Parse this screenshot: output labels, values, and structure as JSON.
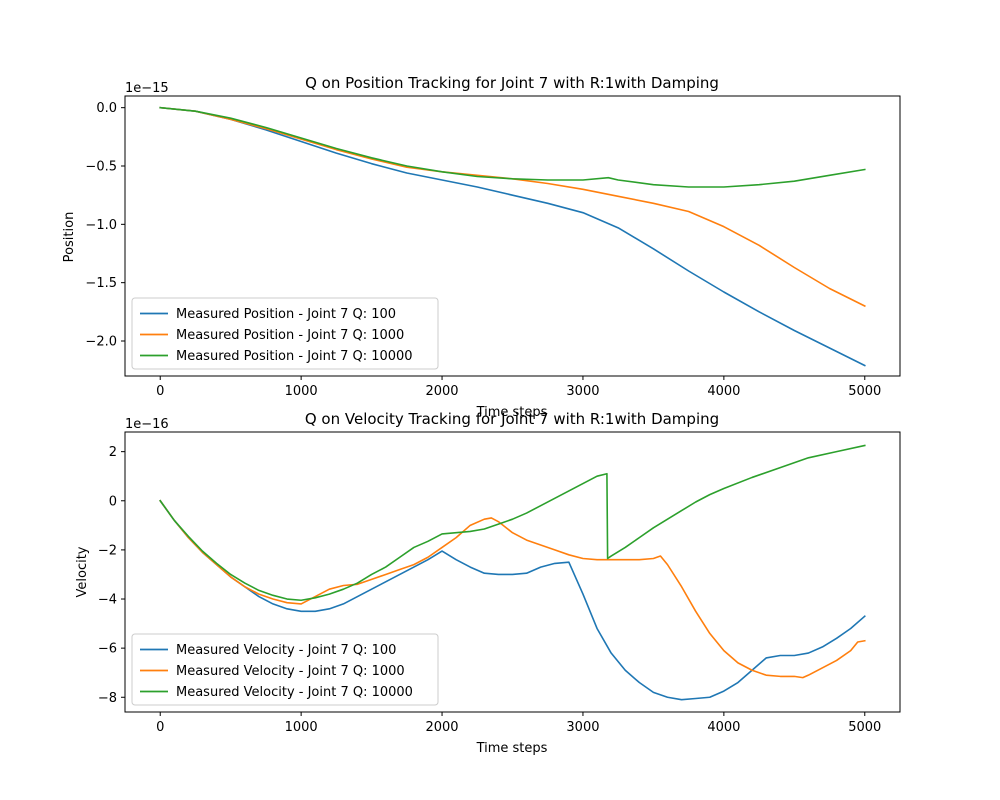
{
  "chart_data": [
    {
      "type": "line",
      "title": "Q on Position Tracking for Joint 7 with R:1with Damping",
      "xlabel": "Time steps",
      "ylabel": "Position",
      "offset_text": "1e−15",
      "xlim": [
        -250,
        5250
      ],
      "ylim": [
        -2.3,
        0.1
      ],
      "xticks": [
        0,
        1000,
        2000,
        3000,
        4000,
        5000
      ],
      "yticks": [
        0.0,
        -0.5,
        -1.0,
        -1.5,
        -2.0
      ],
      "ytick_labels": [
        "0.0",
        "−0.5",
        "−1.0",
        "−1.5",
        "−2.0"
      ],
      "grid": false,
      "legend": "lower-left",
      "series": [
        {
          "name": "Measured Position - Joint 7 Q: 100",
          "color": "#1f77b4",
          "x": [
            0,
            250,
            500,
            750,
            1000,
            1250,
            1500,
            1750,
            2000,
            2250,
            2500,
            2750,
            3000,
            3250,
            3500,
            3750,
            4000,
            4250,
            4500,
            4750,
            5000
          ],
          "y": [
            0.0,
            -0.03,
            -0.1,
            -0.19,
            -0.29,
            -0.39,
            -0.48,
            -0.56,
            -0.62,
            -0.68,
            -0.75,
            -0.82,
            -0.9,
            -1.03,
            -1.21,
            -1.4,
            -1.58,
            -1.75,
            -1.91,
            -2.06,
            -2.21
          ]
        },
        {
          "name": "Measured Position - Joint 7 Q: 1000",
          "color": "#ff7f0e",
          "x": [
            0,
            250,
            500,
            750,
            1000,
            1250,
            1500,
            1750,
            2000,
            2250,
            2500,
            2750,
            3000,
            3250,
            3500,
            3750,
            4000,
            4250,
            4500,
            4750,
            5000
          ],
          "y": [
            0.0,
            -0.03,
            -0.1,
            -0.18,
            -0.27,
            -0.36,
            -0.44,
            -0.51,
            -0.55,
            -0.58,
            -0.61,
            -0.65,
            -0.7,
            -0.76,
            -0.82,
            -0.89,
            -1.02,
            -1.18,
            -1.37,
            -1.55,
            -1.7
          ]
        },
        {
          "name": "Measured Position - Joint 7 Q: 10000",
          "color": "#2ca02c",
          "x": [
            0,
            250,
            500,
            750,
            1000,
            1250,
            1500,
            1750,
            2000,
            2250,
            2500,
            2750,
            3000,
            3180,
            3250,
            3500,
            3750,
            4000,
            4250,
            4500,
            4750,
            5000
          ],
          "y": [
            0.0,
            -0.03,
            -0.09,
            -0.17,
            -0.26,
            -0.35,
            -0.43,
            -0.5,
            -0.55,
            -0.59,
            -0.61,
            -0.62,
            -0.62,
            -0.6,
            -0.62,
            -0.66,
            -0.68,
            -0.68,
            -0.66,
            -0.63,
            -0.58,
            -0.53
          ]
        }
      ]
    },
    {
      "type": "line",
      "title": "Q on Velocity Tracking for Joint 7 with R:1with Damping",
      "xlabel": "Time steps",
      "ylabel": "Velocity",
      "offset_text": "1e−16",
      "xlim": [
        -250,
        5250
      ],
      "ylim": [
        -8.6,
        2.8
      ],
      "xticks": [
        0,
        1000,
        2000,
        3000,
        4000,
        5000
      ],
      "yticks": [
        2,
        0,
        -2,
        -4,
        -6,
        -8
      ],
      "ytick_labels": [
        "2",
        "0",
        "−2",
        "−4",
        "−6",
        "−8"
      ],
      "grid": false,
      "legend": "lower-left",
      "series": [
        {
          "name": "Measured Velocity - Joint 7 Q: 100",
          "color": "#1f77b4",
          "x": [
            0,
            100,
            200,
            300,
            400,
            500,
            600,
            700,
            800,
            900,
            1000,
            1100,
            1200,
            1300,
            1400,
            1500,
            1600,
            1700,
            1800,
            1900,
            2000,
            2100,
            2200,
            2300,
            2400,
            2500,
            2600,
            2700,
            2800,
            2900,
            3000,
            3100,
            3200,
            3300,
            3400,
            3500,
            3600,
            3700,
            3800,
            3900,
            4000,
            4100,
            4200,
            4300,
            4400,
            4500,
            4600,
            4700,
            4800,
            4900,
            5000
          ],
          "y": [
            0.0,
            -0.8,
            -1.5,
            -2.1,
            -2.6,
            -3.1,
            -3.5,
            -3.9,
            -4.2,
            -4.4,
            -4.5,
            -4.5,
            -4.4,
            -4.2,
            -3.9,
            -3.6,
            -3.3,
            -3.0,
            -2.7,
            -2.4,
            -2.05,
            -2.4,
            -2.7,
            -2.95,
            -3.0,
            -3.0,
            -2.95,
            -2.7,
            -2.55,
            -2.5,
            -3.8,
            -5.2,
            -6.2,
            -6.9,
            -7.4,
            -7.8,
            -8.0,
            -8.1,
            -8.05,
            -8.0,
            -7.75,
            -7.4,
            -6.9,
            -6.4,
            -6.3,
            -6.3,
            -6.2,
            -5.95,
            -5.6,
            -5.2,
            -4.7
          ]
        },
        {
          "name": "Measured Velocity - Joint 7 Q: 1000",
          "color": "#ff7f0e",
          "x": [
            0,
            100,
            200,
            300,
            400,
            500,
            600,
            700,
            800,
            900,
            1000,
            1100,
            1200,
            1300,
            1400,
            1500,
            1600,
            1700,
            1800,
            1900,
            2000,
            2100,
            2200,
            2300,
            2350,
            2400,
            2500,
            2600,
            2700,
            2800,
            2900,
            3000,
            3100,
            3200,
            3300,
            3400,
            3500,
            3550,
            3600,
            3700,
            3800,
            3900,
            4000,
            4100,
            4200,
            4300,
            4400,
            4500,
            4560,
            4600,
            4700,
            4800,
            4900,
            4950,
            5000
          ],
          "y": [
            0.0,
            -0.8,
            -1.5,
            -2.1,
            -2.6,
            -3.1,
            -3.5,
            -3.8,
            -4.0,
            -4.15,
            -4.2,
            -3.9,
            -3.6,
            -3.45,
            -3.4,
            -3.2,
            -3.0,
            -2.8,
            -2.6,
            -2.3,
            -1.9,
            -1.5,
            -1.0,
            -0.75,
            -0.7,
            -0.85,
            -1.3,
            -1.6,
            -1.8,
            -2.0,
            -2.2,
            -2.35,
            -2.4,
            -2.4,
            -2.4,
            -2.4,
            -2.35,
            -2.25,
            -2.6,
            -3.5,
            -4.5,
            -5.4,
            -6.1,
            -6.6,
            -6.9,
            -7.1,
            -7.15,
            -7.15,
            -7.2,
            -7.1,
            -6.8,
            -6.5,
            -6.1,
            -5.75,
            -5.7
          ]
        },
        {
          "name": "Measured Velocity - Joint 7 Q: 10000",
          "color": "#2ca02c",
          "x": [
            0,
            100,
            200,
            300,
            400,
            500,
            600,
            700,
            800,
            900,
            1000,
            1100,
            1200,
            1300,
            1400,
            1500,
            1600,
            1700,
            1800,
            1900,
            2000,
            2100,
            2200,
            2300,
            2400,
            2500,
            2600,
            2700,
            2800,
            2900,
            3000,
            3100,
            3170,
            3175,
            3200,
            3300,
            3400,
            3500,
            3600,
            3700,
            3800,
            3900,
            4000,
            4200,
            4400,
            4600,
            4800,
            5000
          ],
          "y": [
            0.0,
            -0.8,
            -1.45,
            -2.05,
            -2.55,
            -3.0,
            -3.35,
            -3.65,
            -3.85,
            -4.0,
            -4.05,
            -3.95,
            -3.8,
            -3.6,
            -3.35,
            -3.0,
            -2.7,
            -2.3,
            -1.9,
            -1.65,
            -1.35,
            -1.3,
            -1.25,
            -1.15,
            -0.95,
            -0.75,
            -0.5,
            -0.2,
            0.1,
            0.4,
            0.7,
            1.0,
            1.1,
            -2.35,
            -2.25,
            -1.9,
            -1.5,
            -1.1,
            -0.75,
            -0.4,
            -0.05,
            0.25,
            0.5,
            0.95,
            1.35,
            1.75,
            2.0,
            2.25
          ]
        }
      ]
    }
  ]
}
